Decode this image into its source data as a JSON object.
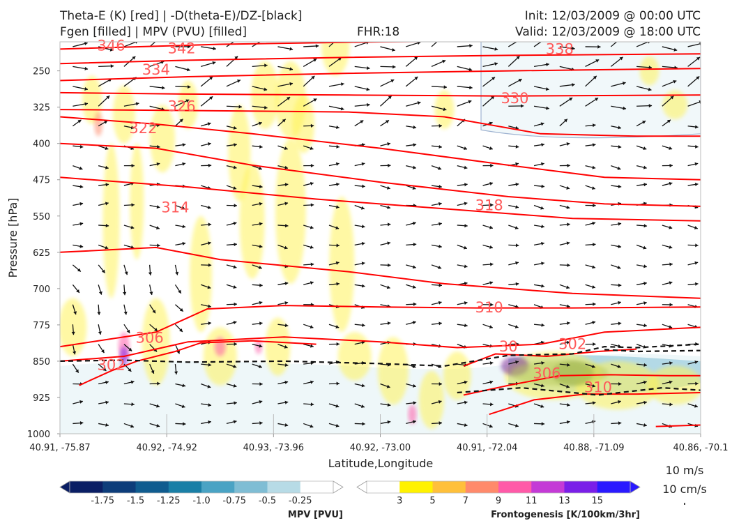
{
  "header": {
    "title_left_1": "Theta-E (K) [red] | -D(theta-E)/DZ-[black]",
    "title_left_2": "Fgen [filled] | MPV (PVU) [filled]",
    "fhr": "FHR:18",
    "init": "Init: 12/03/2009 @ 00:00 UTC",
    "valid": "Valid: 12/03/2009 @ 18:00 UTC"
  },
  "colors": {
    "theta_e": "#ff0000",
    "theta_e_label": "#ff5a5a",
    "vectors": "#111111",
    "mpv_colors": [
      "#0a1e64",
      "#0d3d7a",
      "#105c8f",
      "#1a7fa6",
      "#4aa3c4",
      "#7fbdd4",
      "#b7dbe6",
      "#ffffff"
    ],
    "fgen_colors": [
      "#ffffff",
      "#fff200",
      "#ffc03a",
      "#ff8a6b",
      "#ff5aa8",
      "#c43ad6",
      "#7a1fe8",
      "#2a1aff"
    ]
  },
  "chart_data": {
    "type": "cross-section",
    "xlabel": "Latitude,Longitude",
    "ylabel": "Pressure [hPa]",
    "x_ticks": [
      "40.91, -75.87",
      "40.92, -74.92",
      "40.93, -73.96",
      "40.92, -73.00",
      "40.91, -72.04",
      "40.88, -71.09",
      "40.86, -70.1"
    ],
    "y_ticks": [
      "250",
      "325",
      "400",
      "475",
      "550",
      "625",
      "700",
      "775",
      "850",
      "925",
      "1000"
    ],
    "ylim": [
      1000,
      190
    ],
    "y_scale": "reversed",
    "theta_e_contour_labels": [
      {
        "value": "346",
        "x": 0.08,
        "p": 198
      },
      {
        "value": "342",
        "x": 0.19,
        "p": 204
      },
      {
        "value": "338",
        "x": 0.78,
        "p": 205
      },
      {
        "value": "334",
        "x": 0.15,
        "p": 248
      },
      {
        "value": "330",
        "x": 0.71,
        "p": 307
      },
      {
        "value": "326",
        "x": 0.19,
        "p": 323
      },
      {
        "value": "322",
        "x": 0.13,
        "p": 369
      },
      {
        "value": "318",
        "x": 0.67,
        "p": 528
      },
      {
        "value": "314",
        "x": 0.18,
        "p": 532
      },
      {
        "value": "310",
        "x": 0.67,
        "p": 739
      },
      {
        "value": "310",
        "x": 0.84,
        "p": 904
      },
      {
        "value": "306",
        "x": 0.14,
        "p": 802
      },
      {
        "value": "306",
        "x": 0.76,
        "p": 875
      },
      {
        "value": "302",
        "x": 0.08,
        "p": 858
      },
      {
        "value": "302",
        "x": 0.8,
        "p": 815
      },
      {
        "value": "30",
        "x": 0.7,
        "p": 820
      }
    ],
    "theta_e_levels": [
      346,
      342,
      338,
      334,
      330,
      326,
      322,
      318,
      314,
      310,
      306,
      302
    ],
    "mpv_colorbar": {
      "label": "MPV [PVU]",
      "ticks": [
        "-1.75",
        "-1.5",
        "-1.25",
        "-1.0",
        "-0.75",
        "-0.5",
        "-0.25"
      ]
    },
    "fgen_colorbar": {
      "label": "Frontogenesis [K/100km/3hr]",
      "ticks": [
        "3",
        "5",
        "7",
        "9",
        "11",
        "13",
        "15"
      ]
    },
    "vector_reference": {
      "label_1": "10 m/s",
      "label_2": "10 cm/s"
    },
    "grid": false
  }
}
